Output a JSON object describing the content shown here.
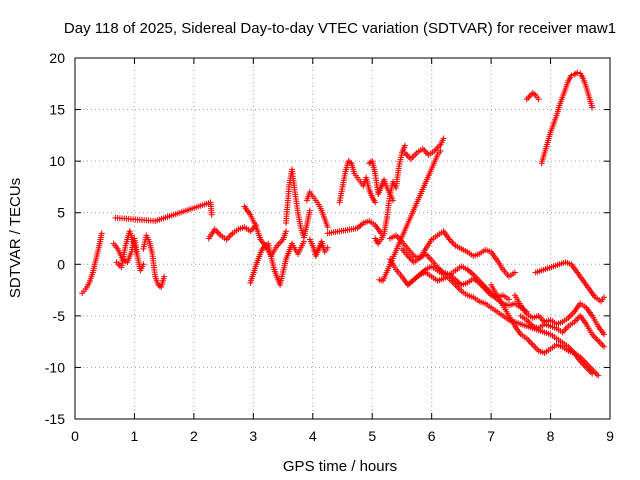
{
  "chart_data": {
    "type": "scatter",
    "title": "Day 118 of 2025, Sidereal Day-to-day VTEC variation (SDTVAR) for receiver maw1",
    "xlabel": "GPS time / hours",
    "ylabel": "SDTVAR / TECUs",
    "xlim": [
      0,
      9
    ],
    "ylim": [
      -15,
      20
    ],
    "xticks": [
      "0",
      "1",
      "2",
      "3",
      "4",
      "5",
      "6",
      "7",
      "8",
      "9"
    ],
    "yticks": [
      "-15",
      "-10",
      "-5",
      "0",
      "5",
      "10",
      "15",
      "20"
    ],
    "grid": true,
    "marker": "+",
    "color": "#ff0000",
    "series": [
      {
        "name": "seg1",
        "x": [
          0.12,
          0.18,
          0.24,
          0.3,
          0.35,
          0.4,
          0.45
        ],
        "y": [
          -2.8,
          -2.4,
          -1.8,
          -0.8,
          0.4,
          1.6,
          3.0
        ]
      },
      {
        "name": "seg2",
        "x": [
          0.65,
          0.72,
          0.8,
          0.88,
          0.95,
          1.0,
          1.05,
          1.1,
          1.15
        ],
        "y": [
          2.0,
          1.5,
          0.5,
          0.2,
          1.2,
          2.5,
          0.8,
          -0.6,
          0.0
        ]
      },
      {
        "name": "seg3",
        "x": [
          0.7,
          0.78,
          0.85,
          0.92,
          0.98,
          1.04
        ],
        "y": [
          0.2,
          -0.3,
          1.8,
          3.2,
          2.2,
          1.0
        ]
      },
      {
        "name": "seg4",
        "x": [
          1.15,
          1.2,
          1.25,
          1.3,
          1.35,
          1.4,
          1.45,
          1.5
        ],
        "y": [
          1.5,
          2.8,
          2.2,
          1.0,
          -1.2,
          -2.0,
          -2.2,
          -1.2
        ]
      },
      {
        "name": "outliers1",
        "x": [
          0.68,
          1.35,
          2.28,
          2.3
        ],
        "y": [
          4.5,
          4.2,
          6.0,
          4.8
        ]
      },
      {
        "name": "seg5",
        "x": [
          2.25,
          2.35,
          2.45,
          2.55,
          2.65,
          2.75,
          2.85,
          2.95,
          3.05
        ],
        "y": [
          2.5,
          3.4,
          2.8,
          2.4,
          3.0,
          3.4,
          3.6,
          3.2,
          3.8
        ]
      },
      {
        "name": "seg6",
        "x": [
          2.85,
          2.95,
          3.05,
          3.12,
          3.2,
          3.3,
          3.4,
          3.5,
          3.55
        ],
        "y": [
          5.6,
          4.8,
          3.6,
          2.4,
          1.8,
          0.8,
          1.8,
          2.4,
          3.2
        ]
      },
      {
        "name": "seg7",
        "x": [
          2.95,
          3.05,
          3.15,
          3.25,
          3.35,
          3.45,
          3.55,
          3.65,
          3.75,
          3.85
        ],
        "y": [
          -1.8,
          0.0,
          1.5,
          2.0,
          -0.5,
          -2.0,
          0.5,
          2.0,
          1.0,
          2.2
        ]
      },
      {
        "name": "seg8",
        "x": [
          3.55,
          3.6,
          3.65,
          3.7,
          3.75,
          3.8,
          3.85,
          3.9,
          3.95
        ],
        "y": [
          4.0,
          7.5,
          9.2,
          7.0,
          5.0,
          3.5,
          2.6,
          3.8,
          5.2
        ]
      },
      {
        "name": "seg9",
        "x": [
          3.9,
          3.95,
          4.0,
          4.05,
          4.1,
          4.15,
          4.2,
          4.25
        ],
        "y": [
          6.2,
          7.0,
          6.6,
          6.2,
          5.8,
          5.2,
          4.4,
          3.6
        ]
      },
      {
        "name": "seg10",
        "x": [
          3.95,
          4.0,
          4.05,
          4.1,
          4.15,
          4.2,
          4.25
        ],
        "y": [
          2.4,
          1.8,
          0.8,
          1.5,
          2.2,
          1.2,
          1.6
        ]
      },
      {
        "name": "seg11",
        "x": [
          4.25,
          4.35,
          4.45,
          4.55,
          4.65,
          4.75,
          4.85,
          4.95,
          5.05,
          5.15
        ],
        "y": [
          3.0,
          3.1,
          3.2,
          3.3,
          3.4,
          3.5,
          4.0,
          4.2,
          3.8,
          3.0
        ]
      },
      {
        "name": "seg12",
        "x": [
          4.45,
          4.5,
          4.55,
          4.6,
          4.65,
          4.7,
          4.75,
          4.8,
          4.85,
          4.9,
          4.95,
          5.0,
          5.05
        ],
        "y": [
          6.0,
          7.5,
          9.0,
          10.0,
          9.8,
          8.8,
          8.4,
          8.0,
          7.6,
          8.4,
          7.2,
          6.5,
          6.0
        ]
      },
      {
        "name": "seg13",
        "x": [
          4.95,
          5.0,
          5.05,
          5.1,
          5.15,
          5.2,
          5.25,
          5.3,
          5.35
        ],
        "y": [
          9.8,
          10.0,
          8.8,
          6.8,
          7.5,
          8.2,
          7.4,
          6.8,
          6.2
        ]
      },
      {
        "name": "seg14",
        "x": [
          5.05,
          5.1,
          5.15,
          5.2,
          5.25,
          5.3,
          5.35,
          5.4,
          5.45,
          5.5,
          5.55
        ],
        "y": [
          2.5,
          2.0,
          2.4,
          3.0,
          4.6,
          6.8,
          8.0,
          7.4,
          9.5,
          10.8,
          11.5
        ]
      },
      {
        "name": "seg15",
        "x": [
          5.55,
          5.65,
          5.75,
          5.85,
          5.95,
          6.05,
          6.15,
          6.2
        ],
        "y": [
          10.8,
          10.2,
          10.8,
          11.2,
          10.6,
          11.0,
          11.6,
          12.2
        ]
      },
      {
        "name": "outliers2",
        "x": [
          5.12,
          5.18,
          6.1,
          6.15
        ],
        "y": [
          -1.5,
          -1.6,
          10.6,
          11.0
        ]
      },
      {
        "name": "seg16",
        "x": [
          5.3,
          5.4,
          5.5,
          5.6,
          5.7,
          5.8,
          5.9,
          6.0,
          6.1,
          6.2,
          6.3,
          6.4,
          6.5,
          6.6,
          6.7,
          6.8,
          6.9,
          7.0,
          7.1,
          7.2,
          7.3,
          7.4
        ],
        "y": [
          2.5,
          2.8,
          2.2,
          1.5,
          0.8,
          0.6,
          1.5,
          2.4,
          2.8,
          3.2,
          2.4,
          1.8,
          1.5,
          1.2,
          0.8,
          1.0,
          1.4,
          1.2,
          0.4,
          -0.5,
          -1.2,
          -0.8
        ]
      },
      {
        "name": "seg17",
        "x": [
          5.3,
          5.4,
          5.5,
          5.6,
          5.7,
          5.8,
          5.9,
          6.0,
          6.1,
          6.2,
          6.3,
          6.4,
          6.5,
          6.6,
          6.7,
          6.8,
          6.9,
          7.0,
          7.1,
          7.2,
          7.3
        ],
        "y": [
          0.5,
          -0.5,
          -1.2,
          -2.0,
          -1.5,
          -1.0,
          -0.8,
          -1.2,
          -1.6,
          -1.4,
          -1.0,
          -1.5,
          -2.0,
          -1.8,
          -1.4,
          -1.8,
          -2.4,
          -3.0,
          -3.2,
          -3.0,
          -3.4
        ]
      },
      {
        "name": "seg18",
        "x": [
          5.5,
          5.6,
          5.7,
          5.8,
          5.9,
          6.0,
          6.1,
          6.2,
          6.3,
          6.4,
          6.5,
          6.6,
          6.7,
          6.8,
          6.9,
          7.0,
          7.1,
          7.2,
          7.3,
          7.4,
          7.5,
          7.6
        ],
        "y": [
          1.5,
          0.8,
          0.2,
          0.6,
          1.0,
          0.4,
          -0.3,
          -0.8,
          -1.0,
          -0.6,
          -0.2,
          -0.5,
          -1.0,
          -1.6,
          -2.2,
          -2.8,
          -3.4,
          -3.8,
          -4.0,
          -3.8,
          -4.2,
          -4.6
        ]
      },
      {
        "name": "seg19",
        "x": [
          5.6,
          5.7,
          5.8,
          5.9,
          6.0,
          6.1,
          6.2,
          6.3,
          6.4,
          6.5,
          6.6,
          6.7,
          6.8,
          6.9,
          7.0,
          7.1,
          7.2,
          7.3,
          7.4,
          7.5,
          7.6,
          7.7,
          7.8,
          7.9,
          8.0,
          8.1,
          8.2,
          8.3,
          8.4,
          8.5,
          8.6,
          8.7
        ],
        "y": [
          -2.0,
          -1.5,
          -1.0,
          -0.5,
          -0.2,
          -0.6,
          -1.0,
          -1.4,
          -2.0,
          -2.6,
          -3.0,
          -3.2,
          -3.6,
          -3.8,
          -4.2,
          -4.6,
          -5.0,
          -5.4,
          -5.6,
          -5.8,
          -6.0,
          -6.2,
          -6.4,
          -6.6,
          -6.8,
          -7.2,
          -7.6,
          -8.0,
          -8.6,
          -9.4,
          -10.0,
          -10.6
        ]
      },
      {
        "name": "seg20",
        "x": [
          7.0,
          7.1,
          7.2,
          7.3,
          7.4,
          7.5,
          7.6,
          7.7,
          7.8,
          7.9,
          8.0,
          8.1,
          8.2,
          8.3,
          8.4,
          8.5,
          8.6,
          8.7,
          8.8
        ],
        "y": [
          -2.0,
          -3.0,
          -4.0,
          -5.0,
          -6.0,
          -6.8,
          -7.2,
          -7.8,
          -8.4,
          -8.6,
          -8.2,
          -7.8,
          -8.0,
          -8.4,
          -8.6,
          -9.0,
          -9.6,
          -10.2,
          -10.8
        ]
      },
      {
        "name": "seg21",
        "x": [
          7.4,
          7.5,
          7.6,
          7.7,
          7.8,
          7.9,
          8.0,
          8.1,
          8.2,
          8.3,
          8.4,
          8.5,
          8.6,
          8.7,
          8.8,
          8.9
        ],
        "y": [
          -3.0,
          -4.0,
          -4.8,
          -5.2,
          -5.0,
          -5.6,
          -5.4,
          -5.8,
          -5.6,
          -5.2,
          -4.6,
          -3.8,
          -4.2,
          -5.0,
          -6.0,
          -6.8
        ]
      },
      {
        "name": "seg22",
        "x": [
          7.5,
          7.6,
          7.7,
          7.8,
          7.9,
          8.0,
          8.1,
          8.2,
          8.3,
          8.4,
          8.5,
          8.6,
          8.7,
          8.8,
          8.9
        ],
        "y": [
          -5.0,
          -5.4,
          -6.0,
          -6.2,
          -5.8,
          -6.0,
          -6.2,
          -6.6,
          -6.0,
          -5.6,
          -5.0,
          -5.8,
          -6.8,
          -7.4,
          -8.0
        ]
      },
      {
        "name": "seg23",
        "x": [
          7.75,
          7.85,
          7.95,
          8.05,
          8.15,
          8.25,
          8.35,
          8.45,
          8.55,
          8.65,
          8.75,
          8.85,
          8.9
        ],
        "y": [
          -0.8,
          -0.6,
          -0.4,
          -0.2,
          0.0,
          0.2,
          0.0,
          -0.8,
          -1.6,
          -2.4,
          -3.2,
          -3.6,
          -3.2
        ]
      },
      {
        "name": "seg24",
        "x": [
          7.6,
          7.65,
          7.7,
          7.75,
          7.8
        ],
        "y": [
          16.0,
          16.3,
          16.6,
          16.4,
          16.0
        ]
      },
      {
        "name": "seg25",
        "x": [
          7.85,
          7.9,
          7.95,
          8.0,
          8.05,
          8.1,
          8.15,
          8.2,
          8.25,
          8.3,
          8.35,
          8.4,
          8.45,
          8.5,
          8.55,
          8.6,
          8.65,
          8.7
        ],
        "y": [
          9.8,
          10.8,
          11.8,
          12.8,
          13.6,
          14.4,
          15.4,
          16.2,
          17.0,
          17.8,
          18.3,
          18.4,
          18.6,
          18.5,
          18.0,
          17.2,
          16.2,
          15.2
        ]
      }
    ]
  }
}
